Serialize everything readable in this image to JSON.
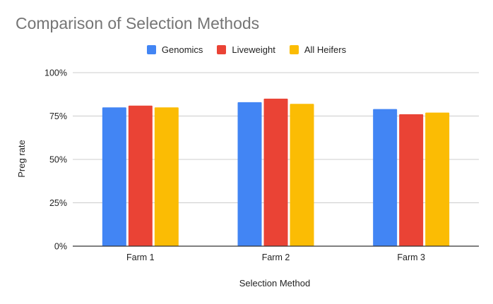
{
  "chart_data": {
    "type": "bar",
    "title": "Comparison of Selection Methods",
    "xlabel": "Selection Method",
    "ylabel": "Preg rate",
    "categories": [
      "Farm 1",
      "Farm 2",
      "Farm 3"
    ],
    "series": [
      {
        "name": "Genomics",
        "color": "#4285f4",
        "values": [
          0.8,
          0.83,
          0.79
        ]
      },
      {
        "name": "Liveweight",
        "color": "#ea4335",
        "values": [
          0.81,
          0.85,
          0.76
        ]
      },
      {
        "name": "All Heifers",
        "color": "#fbbc04",
        "values": [
          0.8,
          0.82,
          0.77
        ]
      }
    ],
    "yticks": [
      {
        "value": 0,
        "label": "0%"
      },
      {
        "value": 0.25,
        "label": "25%"
      },
      {
        "value": 0.5,
        "label": "50%"
      },
      {
        "value": 0.75,
        "label": "75%"
      },
      {
        "value": 1,
        "label": "100%"
      }
    ],
    "ylim": [
      0,
      1
    ],
    "grid": true,
    "legend_position": "top"
  }
}
